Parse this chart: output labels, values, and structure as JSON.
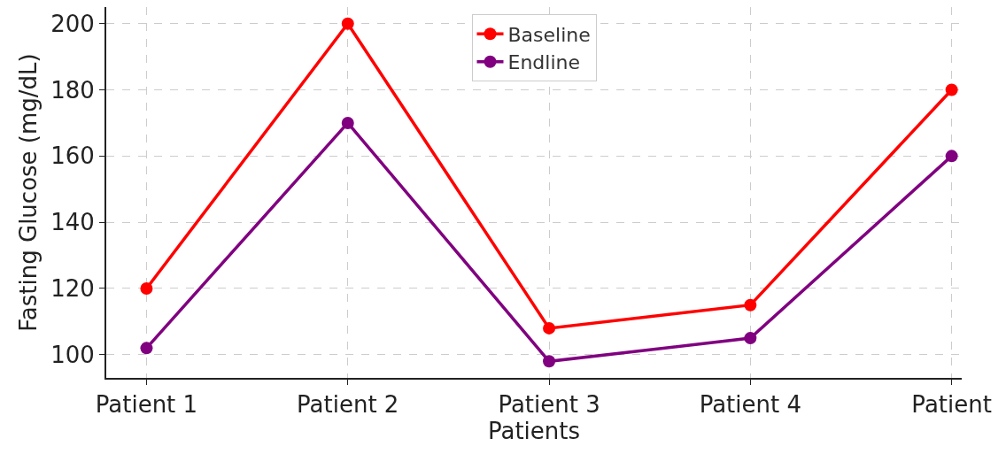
{
  "chart_data": {
    "type": "line",
    "xlabel": "Patients",
    "ylabel": "Fasting Glucose (mg/dL)",
    "categories": [
      "Patient 1",
      "Patient 2",
      "Patient 3",
      "Patient 4",
      "Patient"
    ],
    "series": [
      {
        "name": "Baseline",
        "color": "#ff0000",
        "values": [
          120,
          200,
          108,
          115,
          180
        ]
      },
      {
        "name": "Endline",
        "color": "#800080",
        "values": [
          102,
          170,
          98,
          105,
          160
        ]
      }
    ],
    "ylim": [
      93,
      205
    ],
    "yticks": [
      100,
      120,
      140,
      160,
      180,
      200
    ],
    "grid": true,
    "legend": "top",
    "marker": "circle",
    "line_style": "solid"
  }
}
